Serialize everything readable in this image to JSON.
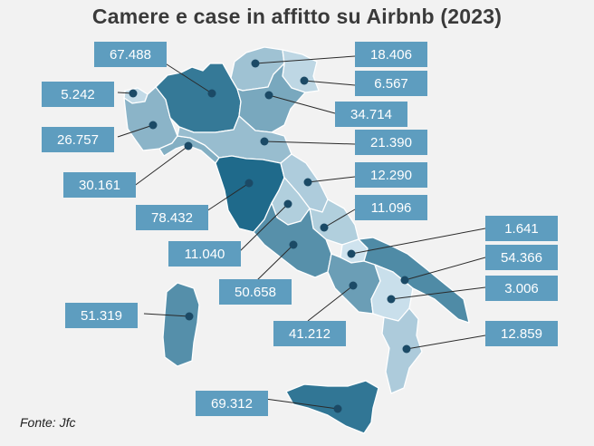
{
  "title": "Camere e case in affitto su Airbnb (2023)",
  "source": "Fonte: Jfc",
  "colors": {
    "background": "#f2f2f2",
    "label_box": "#5e9dbf",
    "label_text": "#ffffff",
    "dot": "#1b4a66",
    "scale_low": "#cfe3ee",
    "scale_high": "#1f6a8b"
  },
  "regions": [
    {
      "name": "Valle d'Aosta",
      "value": "5.242"
    },
    {
      "name": "Piemonte",
      "value": "26.757"
    },
    {
      "name": "Lombardia",
      "value": "67.488"
    },
    {
      "name": "Trentino-Alto Adige",
      "value": "18.406"
    },
    {
      "name": "Friuli-Venezia Giulia",
      "value": "6.567"
    },
    {
      "name": "Veneto",
      "value": "34.714"
    },
    {
      "name": "Liguria",
      "value": "30.161"
    },
    {
      "name": "Emilia-Romagna",
      "value": "21.390"
    },
    {
      "name": "Toscana",
      "value": "78.432"
    },
    {
      "name": "Marche",
      "value": "12.290"
    },
    {
      "name": "Umbria",
      "value": "11.040"
    },
    {
      "name": "Abruzzo",
      "value": "11.096"
    },
    {
      "name": "Lazio",
      "value": "50.658"
    },
    {
      "name": "Molise",
      "value": "1.641"
    },
    {
      "name": "Puglia",
      "value": "54.366"
    },
    {
      "name": "Campania",
      "value": "41.212"
    },
    {
      "name": "Basilicata",
      "value": "3.006"
    },
    {
      "name": "Calabria",
      "value": "12.859"
    },
    {
      "name": "Sardegna",
      "value": "51.319"
    },
    {
      "name": "Sicilia",
      "value": "69.312"
    }
  ]
}
